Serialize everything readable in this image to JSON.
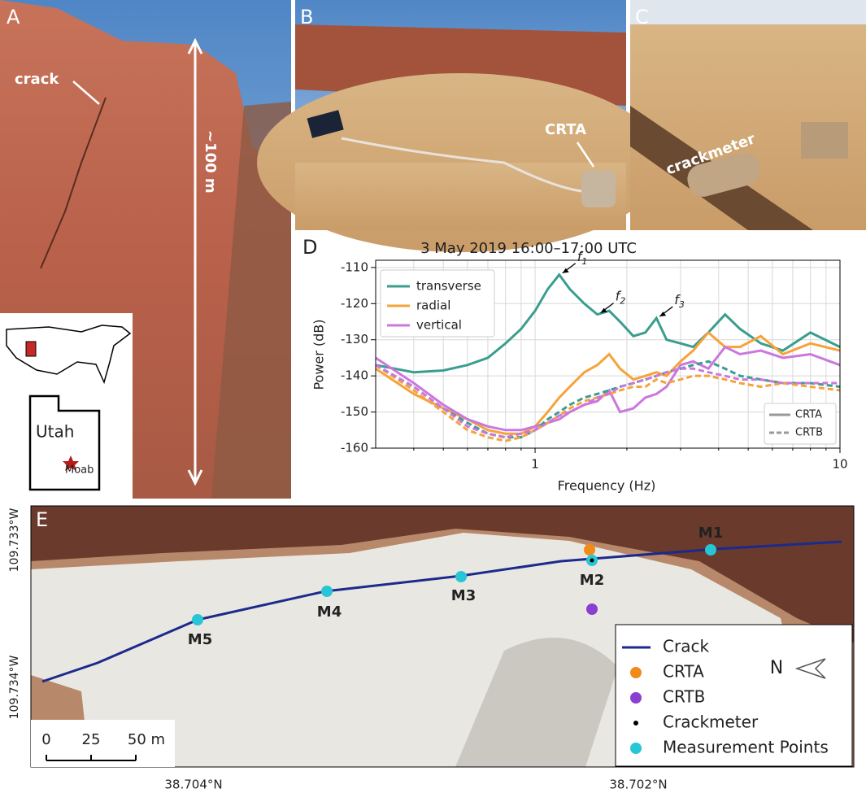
{
  "panels": {
    "a": {
      "label": "A",
      "crack": "crack",
      "height": "~100 m",
      "state": "Utah",
      "city": "Moab"
    },
    "b": {
      "label": "B",
      "sensor": "CRTA"
    },
    "c": {
      "label": "C",
      "sensor": "crackmeter"
    },
    "e": {
      "label": "E",
      "points": [
        "M1",
        "M2",
        "M3",
        "M4",
        "M5"
      ],
      "legend": [
        {
          "label": "Crack",
          "color": "#1c2a8c",
          "marker": "line"
        },
        {
          "label": "CRTA",
          "color": "#f28a1a",
          "marker": "dot"
        },
        {
          "label": "CRTB",
          "color": "#8a3fd1",
          "marker": "dot"
        },
        {
          "label": "Crackmeter",
          "color": "#000000",
          "marker": "small"
        },
        {
          "label": "Measurement Points",
          "color": "#27c6d6",
          "marker": "dot"
        }
      ],
      "north": "N",
      "scale_labels": [
        "0",
        "25",
        "50 m"
      ],
      "lat_labels": [
        "38.704°N",
        "38.702°N"
      ],
      "lon_labels": [
        "109.733°W",
        "109.734°W"
      ]
    }
  },
  "chart_data": {
    "type": "line",
    "panel_label": "D",
    "title": "3 May 2019 16:00–17:00 UTC",
    "x_label": "Frequency (Hz)",
    "y_label": "Power (dB)",
    "xscale": "log",
    "grid": true,
    "xlim": [
      0.3,
      10
    ],
    "ylim": [
      -160,
      -108
    ],
    "xticks": [
      1,
      10
    ],
    "xminor": [
      0.4,
      0.5,
      0.6,
      0.7,
      0.8,
      0.9,
      2,
      3,
      4,
      5,
      6,
      7,
      8,
      9
    ],
    "yticks": [
      -160,
      -150,
      -140,
      -130,
      -120,
      -110
    ],
    "x": [
      0.3,
      0.4,
      0.5,
      0.6,
      0.7,
      0.8,
      0.9,
      1.0,
      1.1,
      1.2,
      1.3,
      1.45,
      1.6,
      1.75,
      1.9,
      2.1,
      2.3,
      2.5,
      2.7,
      3.0,
      3.3,
      3.7,
      4.2,
      4.7,
      5.5,
      6.5,
      8,
      10
    ],
    "line_styles": [
      {
        "name": "CRTA",
        "dash": "solid"
      },
      {
        "name": "CRTB",
        "dash": "dashed"
      }
    ],
    "series": [
      {
        "name": "transverse",
        "color": "#3a9e8f",
        "station": "CRTA",
        "values": [
          -137,
          -139,
          -138.5,
          -137,
          -135,
          -131,
          -127,
          -122,
          -116,
          -112,
          -116,
          -120,
          -123,
          -122,
          -125,
          -129,
          -128,
          -124,
          -130,
          -131,
          -132,
          -128,
          -123,
          -127,
          -131,
          -133,
          -128,
          -132
        ]
      },
      {
        "name": "radial",
        "color": "#f5a33a",
        "station": "CRTA",
        "values": [
          -138,
          -145,
          -149,
          -152,
          -155,
          -156,
          -156,
          -154,
          -150,
          -146,
          -143,
          -139,
          -137,
          -134,
          -138,
          -141,
          -140,
          -139,
          -140,
          -136,
          -133,
          -128,
          -132,
          -132,
          -129,
          -134,
          -131,
          -133
        ]
      },
      {
        "name": "vertical",
        "color": "#cc77dd",
        "station": "CRTA",
        "values": [
          -135,
          -142,
          -148,
          -152,
          -154,
          -155,
          -155,
          -154,
          -153,
          -152,
          -150,
          -148,
          -147,
          -144,
          -150,
          -149,
          -146,
          -145,
          -143,
          -137,
          -136,
          -138,
          -132,
          -134,
          -133,
          -135,
          -134,
          -137
        ]
      },
      {
        "name": "transverse",
        "color": "#3a9e8f",
        "station": "CRTB",
        "values": [
          -137,
          -143,
          -149,
          -153,
          -156,
          -157,
          -157,
          -155,
          -152,
          -150,
          -148,
          -146,
          -145,
          -144,
          -143,
          -142,
          -141,
          -140,
          -139,
          -138,
          -137,
          -136,
          -138,
          -140,
          -141,
          -142,
          -142,
          -143
        ]
      },
      {
        "name": "radial",
        "color": "#f5a33a",
        "station": "CRTB",
        "values": [
          -137,
          -144,
          -150,
          -155,
          -157,
          -158,
          -157,
          -155,
          -153,
          -151,
          -149,
          -147,
          -146,
          -145,
          -144,
          -143,
          -143,
          -141,
          -142,
          -141,
          -140,
          -140,
          -141,
          -142,
          -143,
          -142,
          -143,
          -144
        ]
      },
      {
        "name": "vertical",
        "color": "#cc77dd",
        "station": "CRTB",
        "values": [
          -137,
          -143,
          -149,
          -154,
          -156,
          -157,
          -156,
          -155,
          -153,
          -151,
          -150,
          -148,
          -146,
          -145,
          -143,
          -142,
          -141,
          -140,
          -139,
          -138,
          -138,
          -139,
          -140,
          -141,
          -141,
          -142,
          -142,
          -142
        ]
      }
    ],
    "annotations": [
      {
        "text": "f",
        "sub": "1",
        "x": 1.2,
        "y": -112
      },
      {
        "text": "f",
        "sub": "2",
        "x": 1.6,
        "y": -123
      },
      {
        "text": "f",
        "sub": "3",
        "x": 2.5,
        "y": -124
      }
    ]
  }
}
